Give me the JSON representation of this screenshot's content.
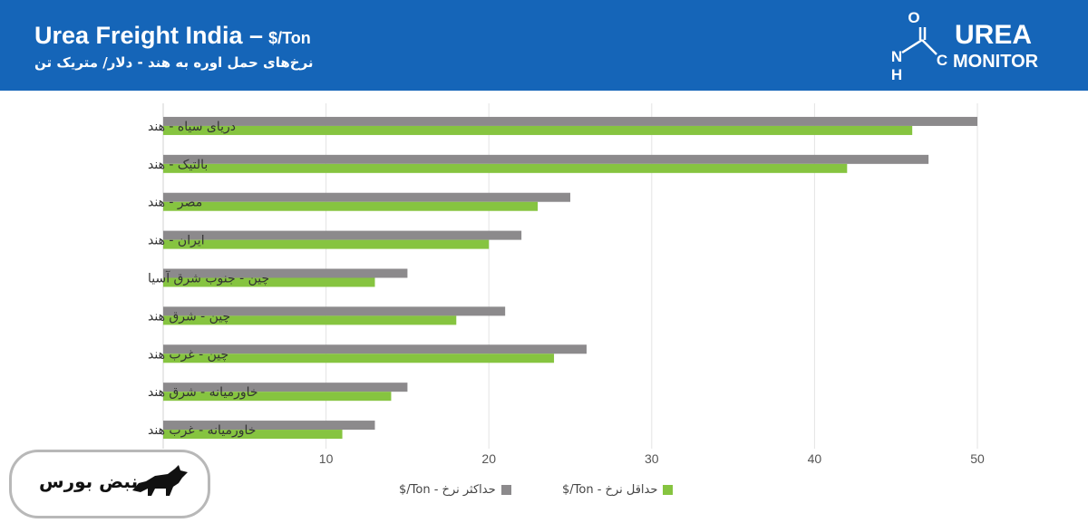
{
  "header": {
    "title": "Urea Freight India –",
    "unit": "$/Ton",
    "subtitle_fa": "نرخ‌های حمل اوره به هند - دلار/ متریک تن",
    "logo_top": "UREA",
    "logo_bottom": "MONITOR",
    "logo_chem_n": "N",
    "logo_chem_h": "H",
    "logo_chem_o": "O",
    "logo_chem_c": "C"
  },
  "watermark": {
    "text": "نبض بورس"
  },
  "colors": {
    "header": "#1565b8",
    "max": "#8c8a8c",
    "min": "#86c440"
  },
  "chart_data": {
    "type": "bar",
    "orientation": "horizontal",
    "title": "Urea Freight India – $/Ton",
    "subtitle": "نرخ‌های حمل اوره به هند - دلار/ متریک تن",
    "categories": [
      "دریای سیاه - هند",
      "بالتیک - هند",
      "مصر - هند",
      "ایران - هند",
      "چین - جنوب شرق آسیا",
      "چین - شرق هند",
      "چین - غرب هند",
      "خاورمیانه - شرق هند",
      "خاورمیانه - غرب هند"
    ],
    "series": [
      {
        "name": "حداکثر نرخ - Ton/$",
        "values": [
          50,
          47,
          25,
          22,
          15,
          21,
          26,
          15,
          13
        ]
      },
      {
        "name": "حداقل نرخ - Ton/$",
        "values": [
          46,
          42,
          23,
          20,
          13,
          18,
          24,
          14,
          11
        ]
      }
    ],
    "xlim": [
      0,
      50
    ],
    "xticks": [
      10,
      20,
      30,
      40,
      50
    ],
    "grid": true,
    "legend": "bottom"
  }
}
